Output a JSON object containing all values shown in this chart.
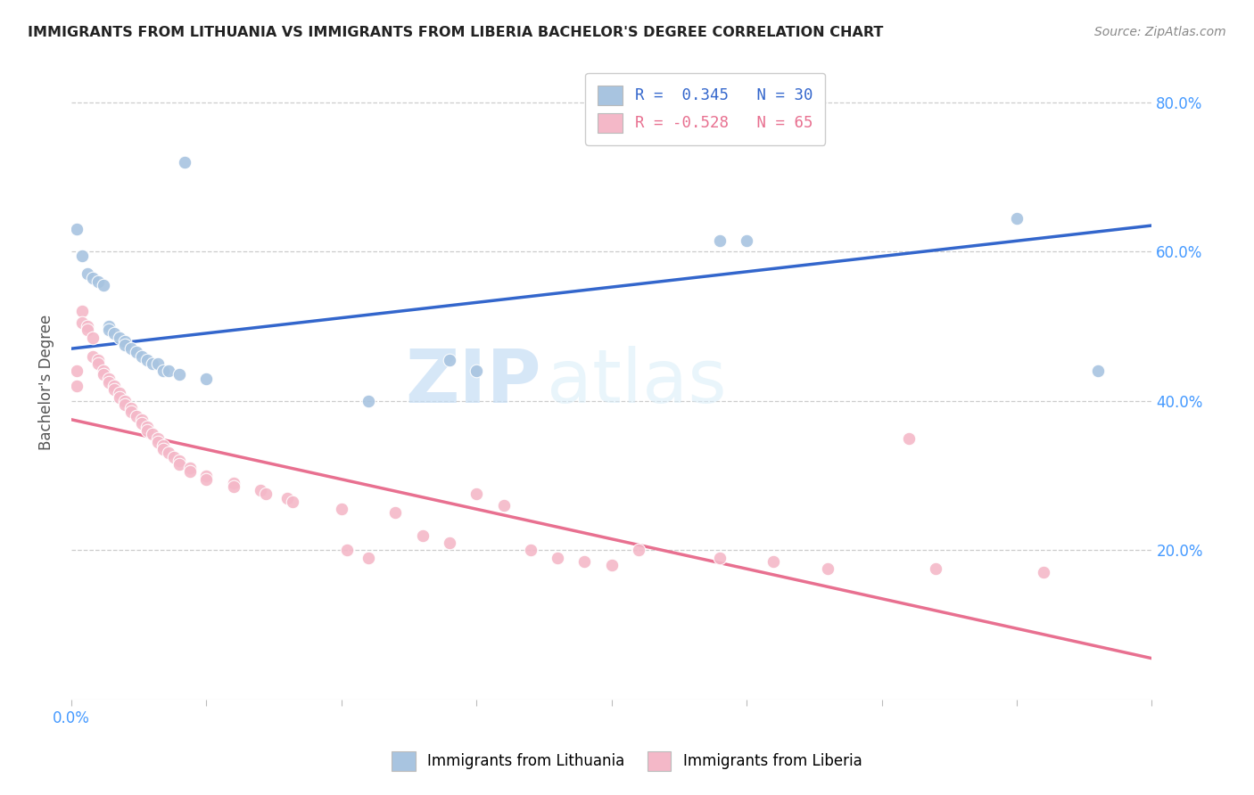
{
  "title": "IMMIGRANTS FROM LITHUANIA VS IMMIGRANTS FROM LIBERIA BACHELOR'S DEGREE CORRELATION CHART",
  "source": "Source: ZipAtlas.com",
  "ylabel": "Bachelor's Degree",
  "xlim": [
    0.0,
    0.2
  ],
  "ylim": [
    0.0,
    0.85
  ],
  "xtick_positions": [
    0.0,
    0.025,
    0.05,
    0.075,
    0.1,
    0.125,
    0.15,
    0.175,
    0.2
  ],
  "xtick_labels_shown": {
    "0.0": "0.0%",
    "0.20": "20.0%"
  },
  "yticks": [
    0.2,
    0.4,
    0.6,
    0.8
  ],
  "color_lithuania": "#a8c4e0",
  "color_liberia": "#f4b8c8",
  "line_color_lithuania": "#3366cc",
  "line_color_liberia": "#e87090",
  "watermark_zip": "ZIP",
  "watermark_atlas": "atlas",
  "legend1_r": "0.345",
  "legend1_n": "30",
  "legend2_r": "-0.528",
  "legend2_n": "65",
  "blue_line_x0": 0.0,
  "blue_line_y0": 0.47,
  "blue_line_x1": 0.2,
  "blue_line_y1": 0.635,
  "pink_line_x0": 0.0,
  "pink_line_y0": 0.375,
  "pink_line_x1": 0.2,
  "pink_line_y1": 0.055,
  "lithuania_pts": [
    [
      0.001,
      0.63
    ],
    [
      0.002,
      0.595
    ],
    [
      0.003,
      0.57
    ],
    [
      0.004,
      0.565
    ],
    [
      0.005,
      0.56
    ],
    [
      0.006,
      0.555
    ],
    [
      0.007,
      0.5
    ],
    [
      0.007,
      0.495
    ],
    [
      0.008,
      0.49
    ],
    [
      0.009,
      0.485
    ],
    [
      0.01,
      0.48
    ],
    [
      0.01,
      0.475
    ],
    [
      0.011,
      0.47
    ],
    [
      0.012,
      0.465
    ],
    [
      0.013,
      0.46
    ],
    [
      0.014,
      0.455
    ],
    [
      0.015,
      0.45
    ],
    [
      0.016,
      0.45
    ],
    [
      0.017,
      0.44
    ],
    [
      0.018,
      0.44
    ],
    [
      0.02,
      0.435
    ],
    [
      0.025,
      0.43
    ],
    [
      0.021,
      0.72
    ],
    [
      0.055,
      0.4
    ],
    [
      0.07,
      0.455
    ],
    [
      0.075,
      0.44
    ],
    [
      0.12,
      0.615
    ],
    [
      0.125,
      0.615
    ],
    [
      0.175,
      0.645
    ],
    [
      0.19,
      0.44
    ]
  ],
  "liberia_pts": [
    [
      0.001,
      0.44
    ],
    [
      0.001,
      0.42
    ],
    [
      0.002,
      0.52
    ],
    [
      0.002,
      0.505
    ],
    [
      0.003,
      0.5
    ],
    [
      0.003,
      0.495
    ],
    [
      0.004,
      0.485
    ],
    [
      0.004,
      0.46
    ],
    [
      0.005,
      0.455
    ],
    [
      0.005,
      0.45
    ],
    [
      0.006,
      0.44
    ],
    [
      0.006,
      0.435
    ],
    [
      0.007,
      0.43
    ],
    [
      0.007,
      0.425
    ],
    [
      0.008,
      0.42
    ],
    [
      0.008,
      0.415
    ],
    [
      0.009,
      0.41
    ],
    [
      0.009,
      0.405
    ],
    [
      0.01,
      0.4
    ],
    [
      0.01,
      0.395
    ],
    [
      0.011,
      0.39
    ],
    [
      0.011,
      0.385
    ],
    [
      0.012,
      0.38
    ],
    [
      0.013,
      0.375
    ],
    [
      0.013,
      0.37
    ],
    [
      0.014,
      0.365
    ],
    [
      0.014,
      0.36
    ],
    [
      0.015,
      0.355
    ],
    [
      0.016,
      0.35
    ],
    [
      0.016,
      0.345
    ],
    [
      0.017,
      0.34
    ],
    [
      0.017,
      0.335
    ],
    [
      0.018,
      0.33
    ],
    [
      0.019,
      0.325
    ],
    [
      0.02,
      0.32
    ],
    [
      0.02,
      0.315
    ],
    [
      0.022,
      0.31
    ],
    [
      0.022,
      0.305
    ],
    [
      0.025,
      0.3
    ],
    [
      0.025,
      0.295
    ],
    [
      0.03,
      0.29
    ],
    [
      0.03,
      0.285
    ],
    [
      0.035,
      0.28
    ],
    [
      0.036,
      0.275
    ],
    [
      0.04,
      0.27
    ],
    [
      0.041,
      0.265
    ],
    [
      0.05,
      0.255
    ],
    [
      0.051,
      0.2
    ],
    [
      0.055,
      0.19
    ],
    [
      0.06,
      0.25
    ],
    [
      0.065,
      0.22
    ],
    [
      0.07,
      0.21
    ],
    [
      0.075,
      0.275
    ],
    [
      0.08,
      0.26
    ],
    [
      0.085,
      0.2
    ],
    [
      0.09,
      0.19
    ],
    [
      0.095,
      0.185
    ],
    [
      0.1,
      0.18
    ],
    [
      0.105,
      0.2
    ],
    [
      0.12,
      0.19
    ],
    [
      0.13,
      0.185
    ],
    [
      0.14,
      0.175
    ],
    [
      0.155,
      0.35
    ],
    [
      0.16,
      0.175
    ],
    [
      0.18,
      0.17
    ]
  ]
}
